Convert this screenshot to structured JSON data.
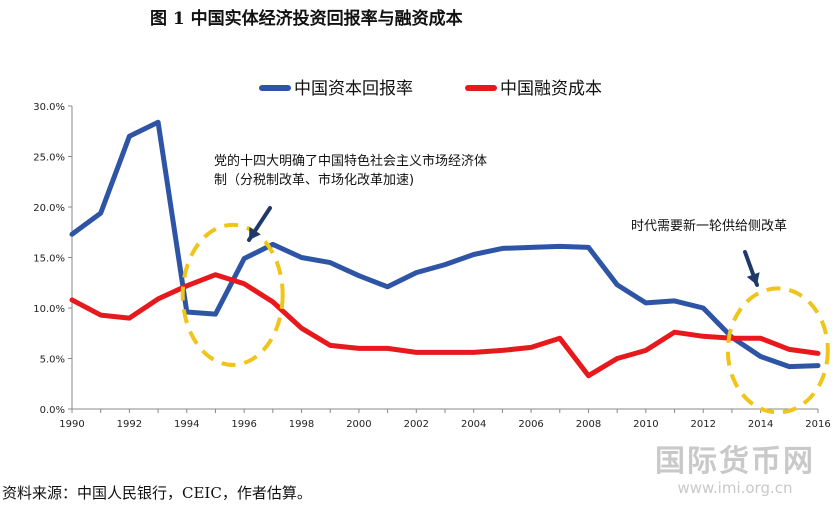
{
  "figure": {
    "title": "图 1    中国实体经济投资回报率与融资成本",
    "source": "资料来源：中国人民银行，CEIC，作者估算。"
  },
  "watermark": {
    "name": "国际货币网",
    "url": "www.imi.org.cn"
  },
  "chart_data": {
    "type": "line",
    "x": [
      1990,
      1991,
      1992,
      1993,
      1994,
      1995,
      1996,
      1997,
      1998,
      1999,
      2000,
      2001,
      2002,
      2003,
      2004,
      2005,
      2006,
      2007,
      2008,
      2009,
      2010,
      2011,
      2012,
      2013,
      2014,
      2015,
      2016
    ],
    "xticks": [
      "1990",
      "1992",
      "1994",
      "1996",
      "1998",
      "2000",
      "2002",
      "2004",
      "2006",
      "2008",
      "2010",
      "2012",
      "2014",
      "2016"
    ],
    "yticks": [
      "0.0%",
      "5.0%",
      "10.0%",
      "15.0%",
      "20.0%",
      "25.0%",
      "30.0%"
    ],
    "ylim": [
      0,
      30
    ],
    "xlim": [
      1990,
      2016
    ],
    "legend_position": "top-center",
    "grid": false,
    "series": [
      {
        "name": "中国资本回报率",
        "color": "#2e55a5",
        "values": [
          17.3,
          19.4,
          27.0,
          28.4,
          9.6,
          9.4,
          14.9,
          16.3,
          15.0,
          14.5,
          13.2,
          12.1,
          13.5,
          14.3,
          15.3,
          15.9,
          16.0,
          16.1,
          16.0,
          12.3,
          10.5,
          10.7,
          10.0,
          7.1,
          5.2,
          4.2,
          4.3
        ]
      },
      {
        "name": "中国融资成本",
        "color": "#e8191d",
        "values": [
          10.8,
          9.3,
          9.0,
          10.9,
          12.2,
          13.3,
          12.4,
          10.6,
          8.0,
          6.3,
          6.0,
          6.0,
          5.6,
          5.6,
          5.6,
          5.8,
          6.1,
          7.0,
          3.3,
          5.0,
          5.8,
          7.6,
          7.2,
          7.0,
          7.0,
          5.9,
          5.5
        ]
      }
    ],
    "annotations": [
      {
        "lines": [
          "党的十四大明确了中国特色社会主义市场经济体",
          "制（分税制改革、市场化改革加速)"
        ],
        "x": 1996,
        "y": 13
      },
      {
        "lines": [
          "时代需要新一轮供给侧改革"
        ],
        "x": 2014.5,
        "y": 5
      }
    ],
    "highlight_color": "#f0c419",
    "arrow_color": "#1f3a68"
  }
}
